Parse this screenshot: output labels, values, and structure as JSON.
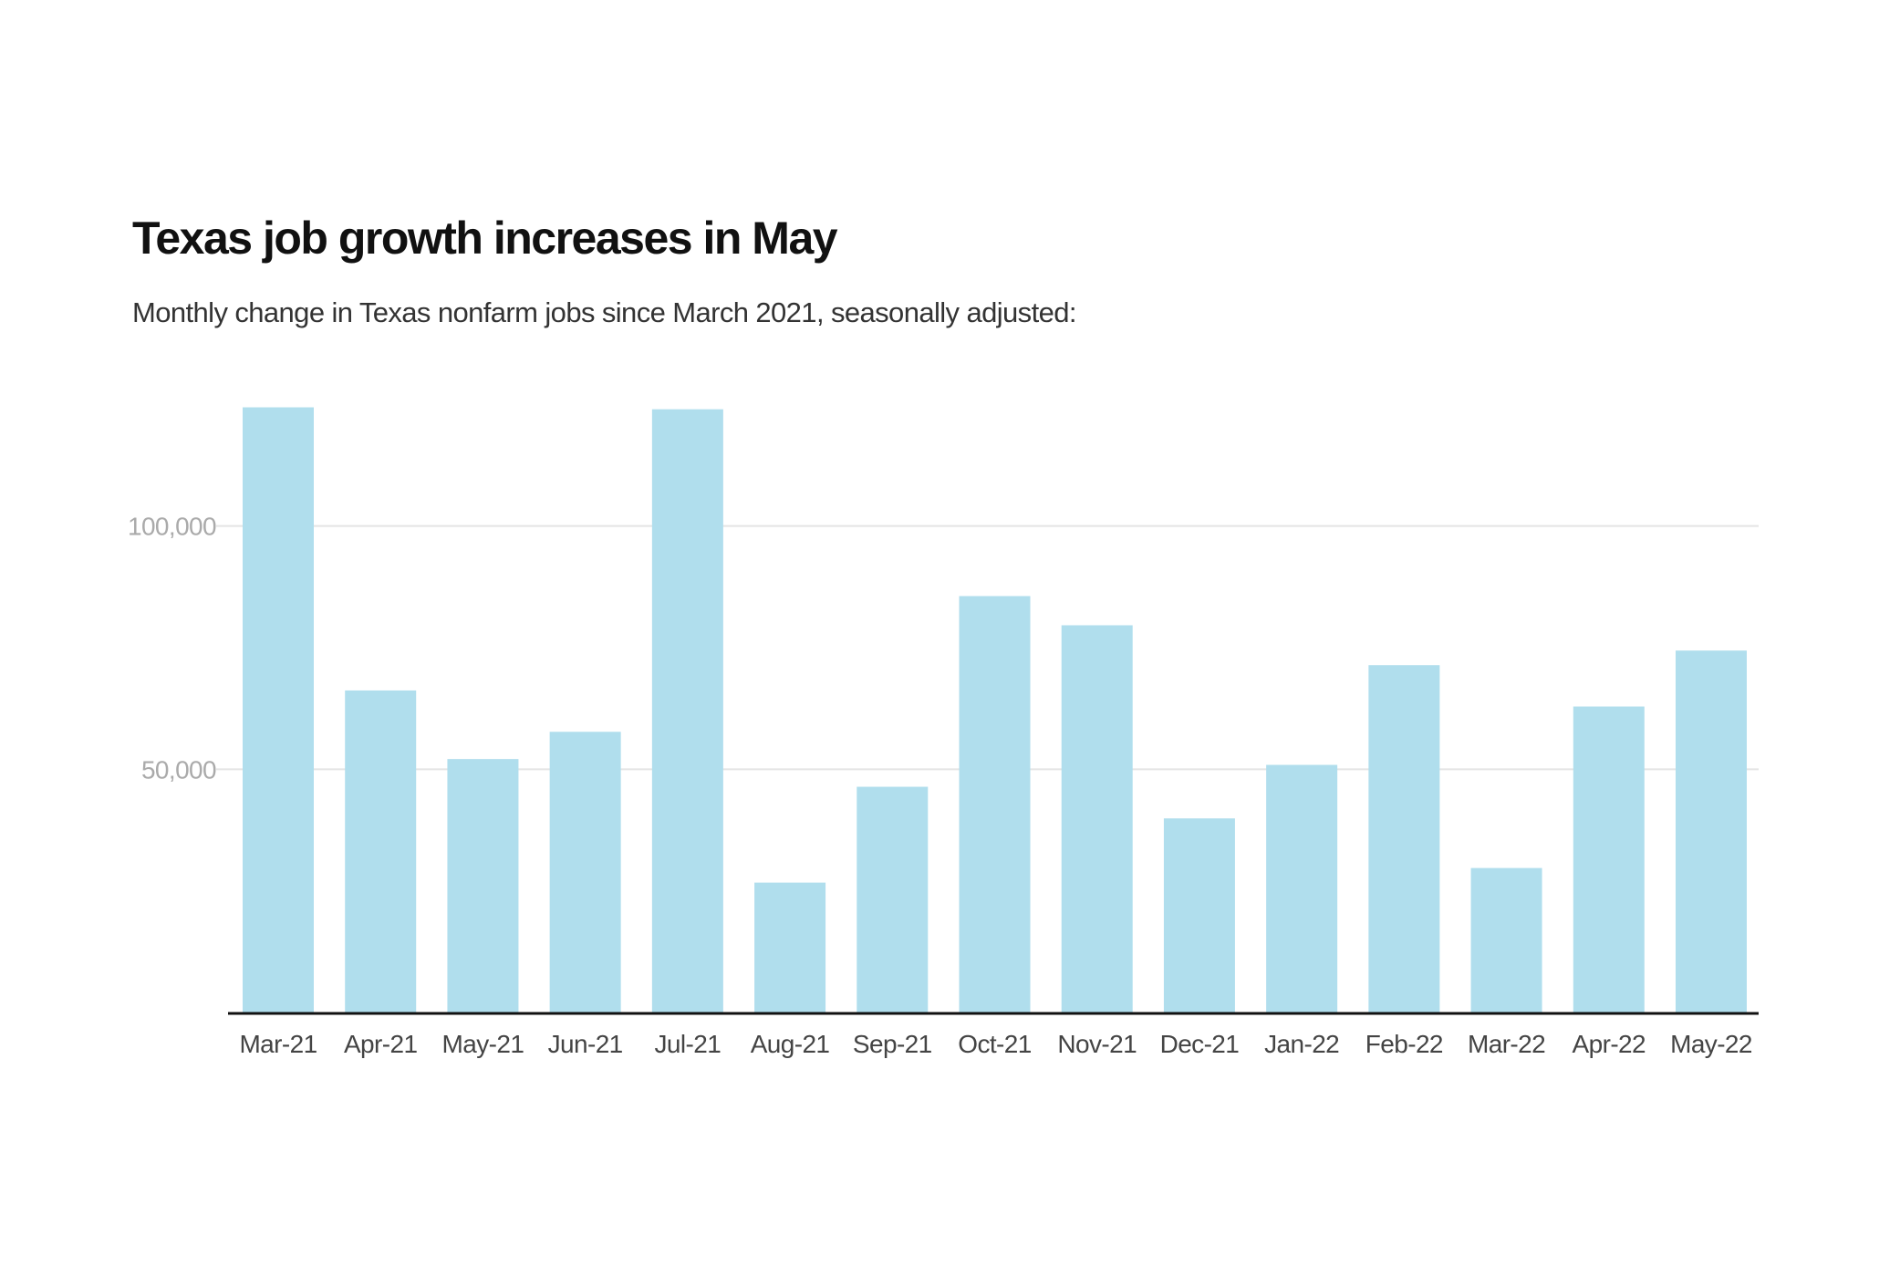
{
  "chart_data": {
    "type": "bar",
    "title": "Texas job growth increases in May",
    "subtitle": "Monthly change in Texas nonfarm jobs since March 2021, seasonally adjusted:",
    "xlabel": "",
    "ylabel": "",
    "categories": [
      "Mar-21",
      "Apr-21",
      "May-21",
      "Jun-21",
      "Jul-21",
      "Aug-21",
      "Sep-21",
      "Oct-21",
      "Nov-21",
      "Dec-21",
      "Jan-22",
      "Feb-22",
      "Mar-22",
      "Apr-22",
      "May-22"
    ],
    "series": [
      {
        "name": "Monthly change in nonfarm jobs",
        "values": [
          124400,
          66200,
          52100,
          57700,
          124000,
          26700,
          46400,
          85600,
          79600,
          39900,
          50900,
          71400,
          29700,
          62900,
          74400
        ]
      }
    ],
    "ylim": [
      0,
      126000
    ],
    "yticks": [
      50000,
      100000
    ],
    "ytick_labels": [
      "50,000",
      "100,000"
    ],
    "grid": true,
    "colors": {
      "bar": "#b0deed",
      "grid": "#e4e4e4",
      "axis": "#111111",
      "ytick_text": "#aaaaaa",
      "xtick_text": "#444444"
    }
  }
}
